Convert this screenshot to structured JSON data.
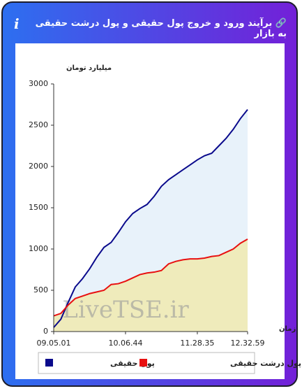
{
  "header": {
    "title": "برآیند ورود و خروج پول حقیقی و پول درشت حقیقی به بازار"
  },
  "chart_data": {
    "type": "line",
    "y_label": "میلیارد تومان",
    "x_label": "زمان",
    "watermark": "LiveTSE.ir",
    "categories": [
      "09.05.01",
      null,
      null,
      null,
      null,
      null,
      null,
      null,
      null,
      null,
      "10.06.44",
      null,
      null,
      null,
      null,
      null,
      null,
      null,
      null,
      null,
      "11.28.35",
      null,
      null,
      null,
      null,
      null,
      null,
      "12.32.59"
    ],
    "series": [
      {
        "name": "پول حقیقی",
        "color": "#0a0a8c",
        "fill": "#e8f2fa",
        "values": [
          50,
          150,
          350,
          540,
          640,
          760,
          900,
          1020,
          1080,
          1200,
          1330,
          1430,
          1490,
          1540,
          1640,
          1760,
          1840,
          1900,
          1960,
          2020,
          2080,
          2130,
          2160,
          2250,
          2340,
          2450,
          2580,
          2690
        ]
      },
      {
        "name": "پول درشت حقیقی",
        "color": "#e81010",
        "fill": "#efebbb",
        "values": [
          190,
          220,
          320,
          400,
          430,
          460,
          480,
          500,
          570,
          580,
          610,
          650,
          690,
          710,
          720,
          740,
          820,
          850,
          870,
          880,
          880,
          890,
          910,
          920,
          960,
          1000,
          1070,
          1120
        ]
      }
    ],
    "ylim": [
      0,
      3000
    ],
    "yticks": [
      0,
      500,
      1000,
      1500,
      2000,
      2500,
      3000
    ],
    "grid": false
  }
}
